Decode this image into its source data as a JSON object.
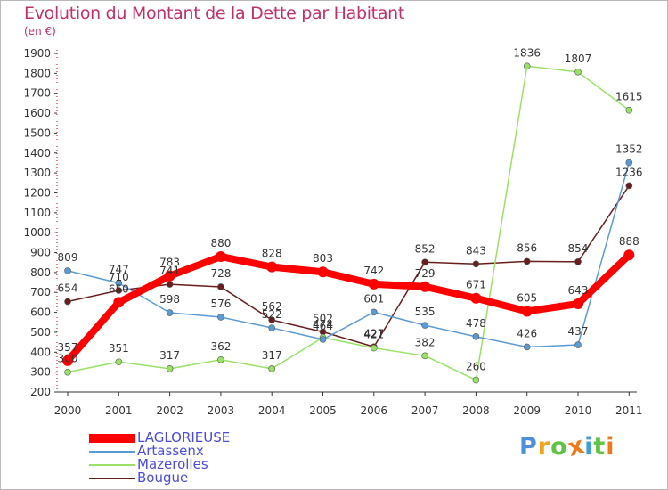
{
  "chart_data": {
    "type": "line",
    "title": "Evolution du Montant de la Dette par Habitant",
    "subtitle": "(en €)",
    "categories": [
      "2000",
      "2001",
      "2002",
      "2003",
      "2004",
      "2005",
      "2006",
      "2007",
      "2008",
      "2009",
      "2010",
      "2011"
    ],
    "ylim": [
      200,
      1900
    ],
    "yticks": [
      200,
      300,
      400,
      500,
      600,
      700,
      800,
      900,
      1000,
      1100,
      1200,
      1300,
      1400,
      1500,
      1600,
      1700,
      1800,
      1900
    ],
    "grid": false,
    "legend_position": "bottom-left",
    "series": [
      {
        "name": "LAGLORIEUSE",
        "color": "#ff0000",
        "values": [
          357,
          650,
          783,
          880,
          828,
          803,
          742,
          729,
          671,
          605,
          643,
          888
        ]
      },
      {
        "name": "Artassenx",
        "color": "#5b9bd5",
        "values": [
          809,
          747,
          598,
          576,
          522,
          464,
          601,
          535,
          478,
          426,
          437,
          1352
        ]
      },
      {
        "name": "Mazerolles",
        "color": "#99e266",
        "values": [
          300,
          351,
          317,
          362,
          317,
          474,
          421,
          382,
          260,
          1836,
          1807,
          1615
        ]
      },
      {
        "name": "Bougue",
        "color": "#6b1c1c",
        "values": [
          654,
          710,
          741,
          728,
          562,
          502,
          427,
          852,
          843,
          856,
          854,
          1236
        ]
      }
    ]
  },
  "logo": {
    "text": "Proxiti",
    "letter_colors": [
      "#4f8fd9",
      "#f2a31e",
      "#5fc443",
      "#ef7a1c",
      "#3fa0d9",
      "#5fc443",
      "#ef7a1c"
    ]
  }
}
